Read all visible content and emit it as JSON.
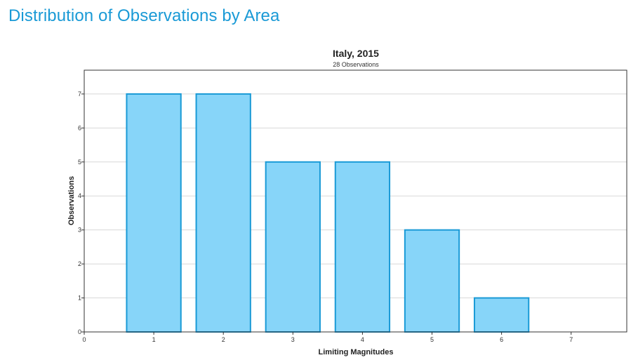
{
  "page": {
    "title": "Distribution of Observations by Area"
  },
  "chart_data": {
    "type": "bar",
    "title": "Italy, 2015",
    "subtitle": "28 Observations",
    "xlabel": "Limiting Magnitudes",
    "ylabel": "Observations",
    "categories": [
      1,
      2,
      3,
      4,
      5,
      6,
      7
    ],
    "values": [
      7,
      7,
      5,
      5,
      3,
      1,
      0
    ],
    "xlim": [
      0,
      7.8
    ],
    "ylim": [
      0,
      7.7
    ],
    "yticks": [
      0,
      1,
      2,
      3,
      4,
      5,
      6,
      7
    ],
    "xticks": [
      0,
      1,
      2,
      3,
      4,
      5,
      6,
      7
    ],
    "grid": true,
    "legend": "none",
    "colors": {
      "bar_fill": "#87d5f9",
      "bar_stroke": "#1a9ad6",
      "title_accent": "#1a9ad6",
      "grid": "#d8d8d8",
      "frame": "#333333"
    }
  }
}
